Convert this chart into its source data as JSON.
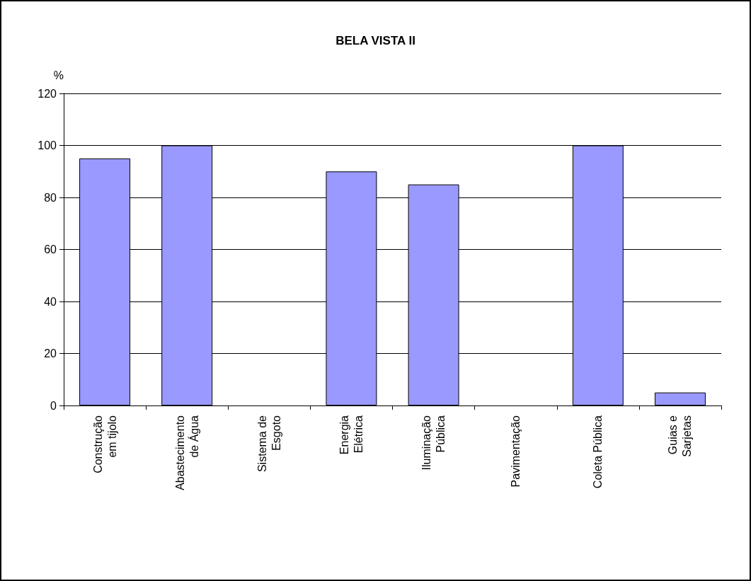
{
  "chart_data": {
    "type": "bar",
    "title": "BELA VISTA II",
    "ylabel": "%",
    "categories": [
      "Construção\nem tijolo",
      "Abastecimento\nde Água",
      "Sistema de\nEsgoto",
      "Energia\nElétrica",
      "Iluminação\nPública",
      "Pavimentação",
      "Coleta Pública",
      "Guias e\nSarjetas"
    ],
    "values": [
      95,
      100,
      0,
      90,
      85,
      0,
      100,
      5
    ],
    "color": "#9999ff",
    "ylim": [
      0,
      120
    ],
    "yticks": [
      0,
      20,
      40,
      60,
      80,
      100,
      120
    ],
    "grid": "y"
  }
}
